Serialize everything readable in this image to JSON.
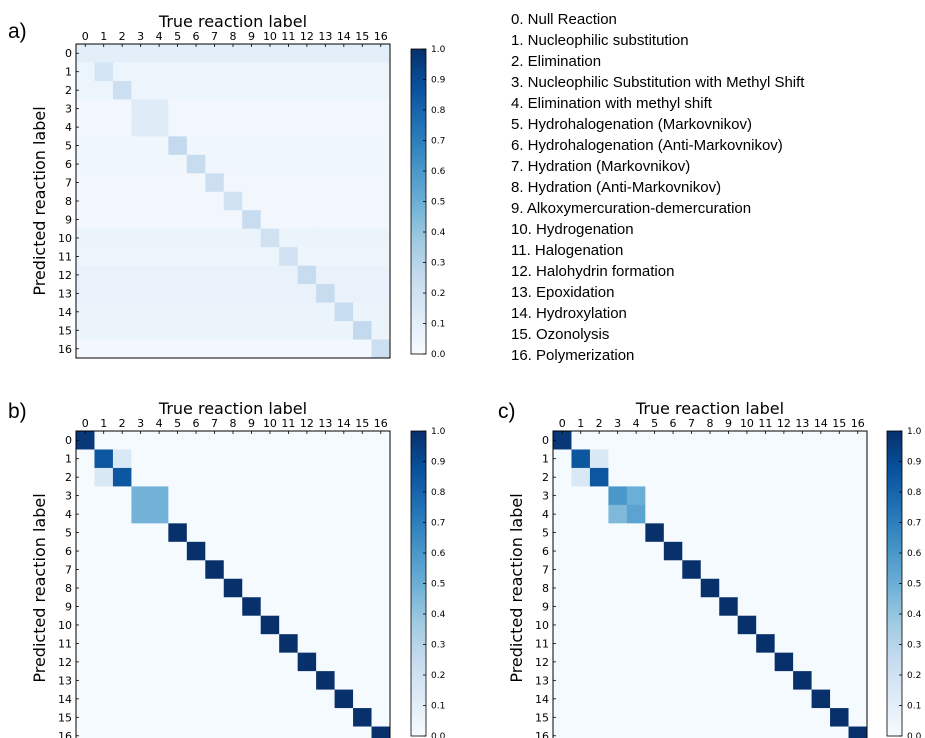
{
  "figure": {
    "legend_items": [
      "0.   Null Reaction",
      "1.   Nucleophilic substitution",
      "2.   Elimination",
      "3.   Nucleophilic Substitution with Methyl Shift",
      "4.   Elimination with methyl shift",
      "5.   Hydrohalogenation (Markovnikov)",
      "6.   Hydrohalogenation (Anti-Markovnikov)",
      "7.   Hydration (Markovnikov)",
      "8.   Hydration (Anti-Markovnikov)",
      "9.   Alkoxymercuration-demercuration",
      "10. Hydrogenation",
      "11. Halogenation",
      "12. Halohydrin formation",
      "13. Epoxidation",
      "14. Hydroxylation",
      "15. Ozonolysis",
      "16. Polymerization"
    ]
  },
  "chart_data": [
    {
      "type": "heatmap",
      "panel": "a)",
      "xlabel": "True reaction label",
      "ylabel": "Predicted reaction label",
      "x_categories": [
        "0",
        "1",
        "2",
        "3",
        "4",
        "5",
        "6",
        "7",
        "8",
        "9",
        "10",
        "11",
        "12",
        "13",
        "14",
        "15",
        "16"
      ],
      "y_categories": [
        "0",
        "1",
        "2",
        "3",
        "4",
        "5",
        "6",
        "7",
        "8",
        "9",
        "10",
        "11",
        "12",
        "13",
        "14",
        "15",
        "16"
      ],
      "colormap": "Blues",
      "colorbar_range": [
        0.0,
        1.0
      ],
      "colorbar_ticks": [
        "0.0",
        "0.1",
        "0.2",
        "0.3",
        "0.4",
        "0.5",
        "0.6",
        "0.7",
        "0.8",
        "0.9",
        "1.0"
      ],
      "diagonal": [
        0.1,
        0.18,
        0.22,
        0.12,
        0.12,
        0.26,
        0.24,
        0.22,
        0.2,
        0.24,
        0.2,
        0.2,
        0.24,
        0.24,
        0.24,
        0.26,
        0.22
      ],
      "blocks": [
        {
          "rows": [
            3,
            4
          ],
          "cols": [
            3,
            4
          ],
          "value": 0.12
        }
      ],
      "row_background": [
        0.1,
        0.05,
        0.05,
        0.03,
        0.03,
        0.04,
        0.04,
        0.03,
        0.03,
        0.03,
        0.06,
        0.05,
        0.07,
        0.07,
        0.06,
        0.06,
        0.02
      ]
    },
    {
      "type": "heatmap",
      "panel": "b)",
      "xlabel": "True reaction label",
      "ylabel": "Predicted reaction label",
      "x_categories": [
        "0",
        "1",
        "2",
        "3",
        "4",
        "5",
        "6",
        "7",
        "8",
        "9",
        "10",
        "11",
        "12",
        "13",
        "14",
        "15",
        "16"
      ],
      "y_categories": [
        "0",
        "1",
        "2",
        "3",
        "4",
        "5",
        "6",
        "7",
        "8",
        "9",
        "10",
        "11",
        "12",
        "13",
        "14",
        "15",
        "16"
      ],
      "colormap": "Blues",
      "colorbar_range": [
        0.0,
        1.0
      ],
      "colorbar_ticks": [
        "0.0",
        "0.1",
        "0.2",
        "0.3",
        "0.4",
        "0.5",
        "0.6",
        "0.7",
        "0.8",
        "0.9",
        "1.0"
      ],
      "diagonal": [
        0.97,
        0.85,
        0.85,
        0.48,
        0.48,
        1.0,
        1.0,
        1.0,
        1.0,
        1.0,
        1.0,
        1.0,
        1.0,
        1.0,
        1.0,
        1.0,
        1.0
      ],
      "cells": [
        {
          "row": 1,
          "col": 2,
          "value": 0.15
        },
        {
          "row": 2,
          "col": 1,
          "value": 0.15
        },
        {
          "row": 3,
          "col": 4,
          "value": 0.48
        },
        {
          "row": 4,
          "col": 3,
          "value": 0.48
        }
      ],
      "background": 0.01
    },
    {
      "type": "heatmap",
      "panel": "c)",
      "xlabel": "True reaction label",
      "ylabel": "Predicted reaction label",
      "x_categories": [
        "0",
        "1",
        "2",
        "3",
        "4",
        "5",
        "6",
        "7",
        "8",
        "9",
        "10",
        "11",
        "12",
        "13",
        "14",
        "15",
        "16"
      ],
      "y_categories": [
        "0",
        "1",
        "2",
        "3",
        "4",
        "5",
        "6",
        "7",
        "8",
        "9",
        "10",
        "11",
        "12",
        "13",
        "14",
        "15",
        "16"
      ],
      "colormap": "Blues",
      "colorbar_range": [
        0.0,
        1.0
      ],
      "colorbar_ticks": [
        "0.0",
        "0.1",
        "0.2",
        "0.3",
        "0.4",
        "0.5",
        "0.6",
        "0.7",
        "0.8",
        "0.9",
        "1.0"
      ],
      "diagonal": [
        0.97,
        0.85,
        0.85,
        0.6,
        0.55,
        1.0,
        1.0,
        1.0,
        1.0,
        1.0,
        1.0,
        1.0,
        1.0,
        1.0,
        1.0,
        1.0,
        1.0
      ],
      "cells": [
        {
          "row": 1,
          "col": 2,
          "value": 0.15
        },
        {
          "row": 2,
          "col": 1,
          "value": 0.15
        },
        {
          "row": 3,
          "col": 4,
          "value": 0.5
        },
        {
          "row": 4,
          "col": 3,
          "value": 0.45
        }
      ],
      "background": 0.01
    }
  ]
}
